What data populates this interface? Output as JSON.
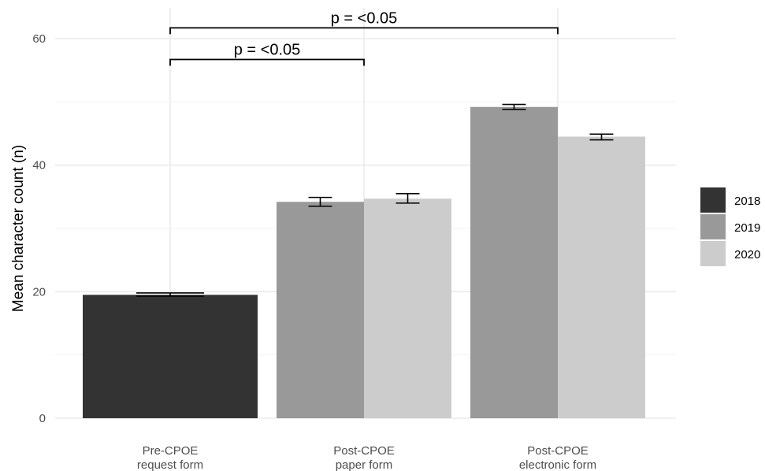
{
  "chart_data": {
    "type": "bar",
    "ylabel": "Mean character count (n)",
    "ylim": [
      0,
      62
    ],
    "yticks": [
      "0",
      "20",
      "40",
      "60"
    ],
    "grid": true,
    "legend_position": "right",
    "categories": [
      {
        "line1": "Pre-CPOE",
        "line2": "request form"
      },
      {
        "line1": "Post-CPOE",
        "line2": "paper form"
      },
      {
        "line1": "Post-CPOE",
        "line2": "electronic form"
      }
    ],
    "series": [
      {
        "name": "2018",
        "color": "#333333",
        "values": [
          19.5,
          null,
          null
        ],
        "err_low": [
          19.3,
          null,
          null
        ],
        "err_high": [
          19.8,
          null,
          null
        ]
      },
      {
        "name": "2019",
        "color": "#999999",
        "values": [
          null,
          34.2,
          49.2
        ],
        "err_low": [
          null,
          33.5,
          48.8
        ],
        "err_high": [
          null,
          34.9,
          49.6
        ]
      },
      {
        "name": "2020",
        "color": "#cccccc",
        "values": [
          null,
          34.7,
          44.5
        ],
        "err_low": [
          null,
          34.0,
          44.0
        ],
        "err_high": [
          null,
          35.5,
          44.9
        ]
      }
    ],
    "annotations": [
      {
        "text": "p = <0.05",
        "from_category": 0,
        "to_category": 1,
        "y": 56.7
      },
      {
        "text": "p = <0.05",
        "from_category": 0,
        "to_category": 2,
        "y": 61.7
      }
    ]
  }
}
